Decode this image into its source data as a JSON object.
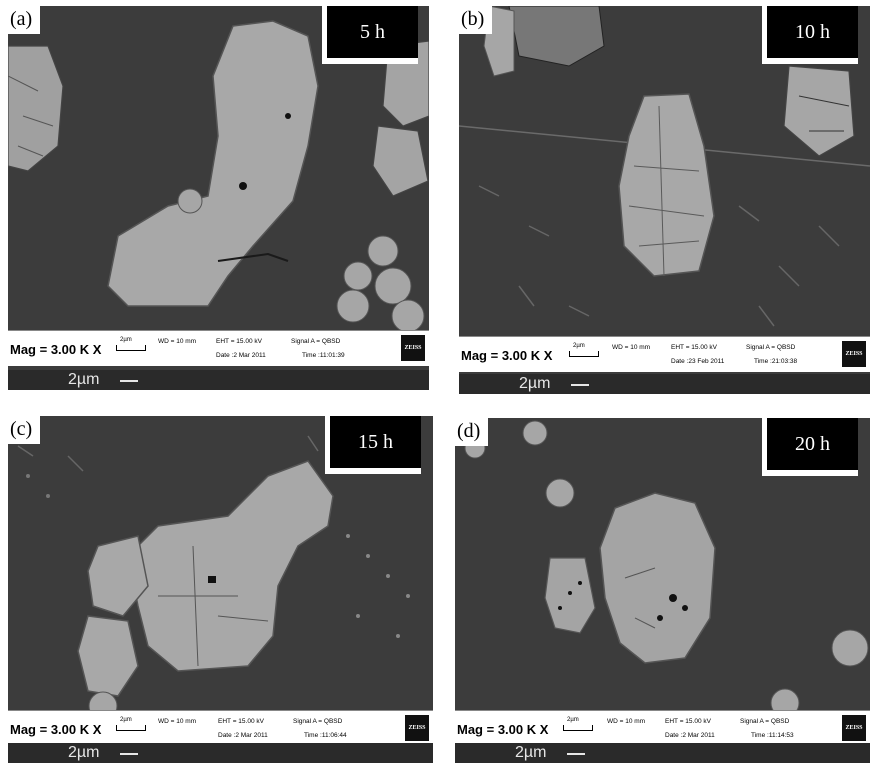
{
  "panels": [
    {
      "letter": "(a)",
      "time": "5 h",
      "mag": "Mag =  3.00 K X",
      "scale": "2µm",
      "wd": "WD =  10 mm",
      "eht": "EHT = 15.00 kV",
      "signal": "Signal A = QBSD",
      "date": "Date :2 Mar 2011",
      "clock": "Time :11:01:39",
      "logo": "ZEISS",
      "footer_scale": "2µm"
    },
    {
      "letter": "(b)",
      "time": "10 h",
      "mag": "Mag =  3.00 K X",
      "scale": "2µm",
      "wd": "WD =  10 mm",
      "eht": "EHT = 15.00 kV",
      "signal": "Signal A = QBSD",
      "date": "Date :23 Feb 2011",
      "clock": "Time :21:03:38",
      "logo": "ZEISS",
      "footer_scale": "2µm"
    },
    {
      "letter": "(c)",
      "time": "15 h",
      "mag": "Mag =  3.00 K X",
      "scale": "2µm",
      "wd": "WD =  10 mm",
      "eht": "EHT = 15.00 kV",
      "signal": "Signal A = QBSD",
      "date": "Date :2 Mar 2011",
      "clock": "Time :11:06:44",
      "logo": "ZEISS",
      "footer_scale": "2µm"
    },
    {
      "letter": "(d)",
      "time": "20 h",
      "mag": "Mag =  3.00 K X",
      "scale": "2µm",
      "wd": "WD =  10 mm",
      "eht": "EHT = 15.00 kV",
      "signal": "Signal A = QBSD",
      "date": "Date :2 Mar 2011",
      "clock": "Time :11:14:53",
      "logo": "ZEISS",
      "footer_scale": "2µm"
    }
  ],
  "colors": {
    "matrix": "#3c3c3c",
    "particle": "#a8a8a8",
    "particle_edge": "#5a5a5a",
    "pore": "#111111"
  }
}
